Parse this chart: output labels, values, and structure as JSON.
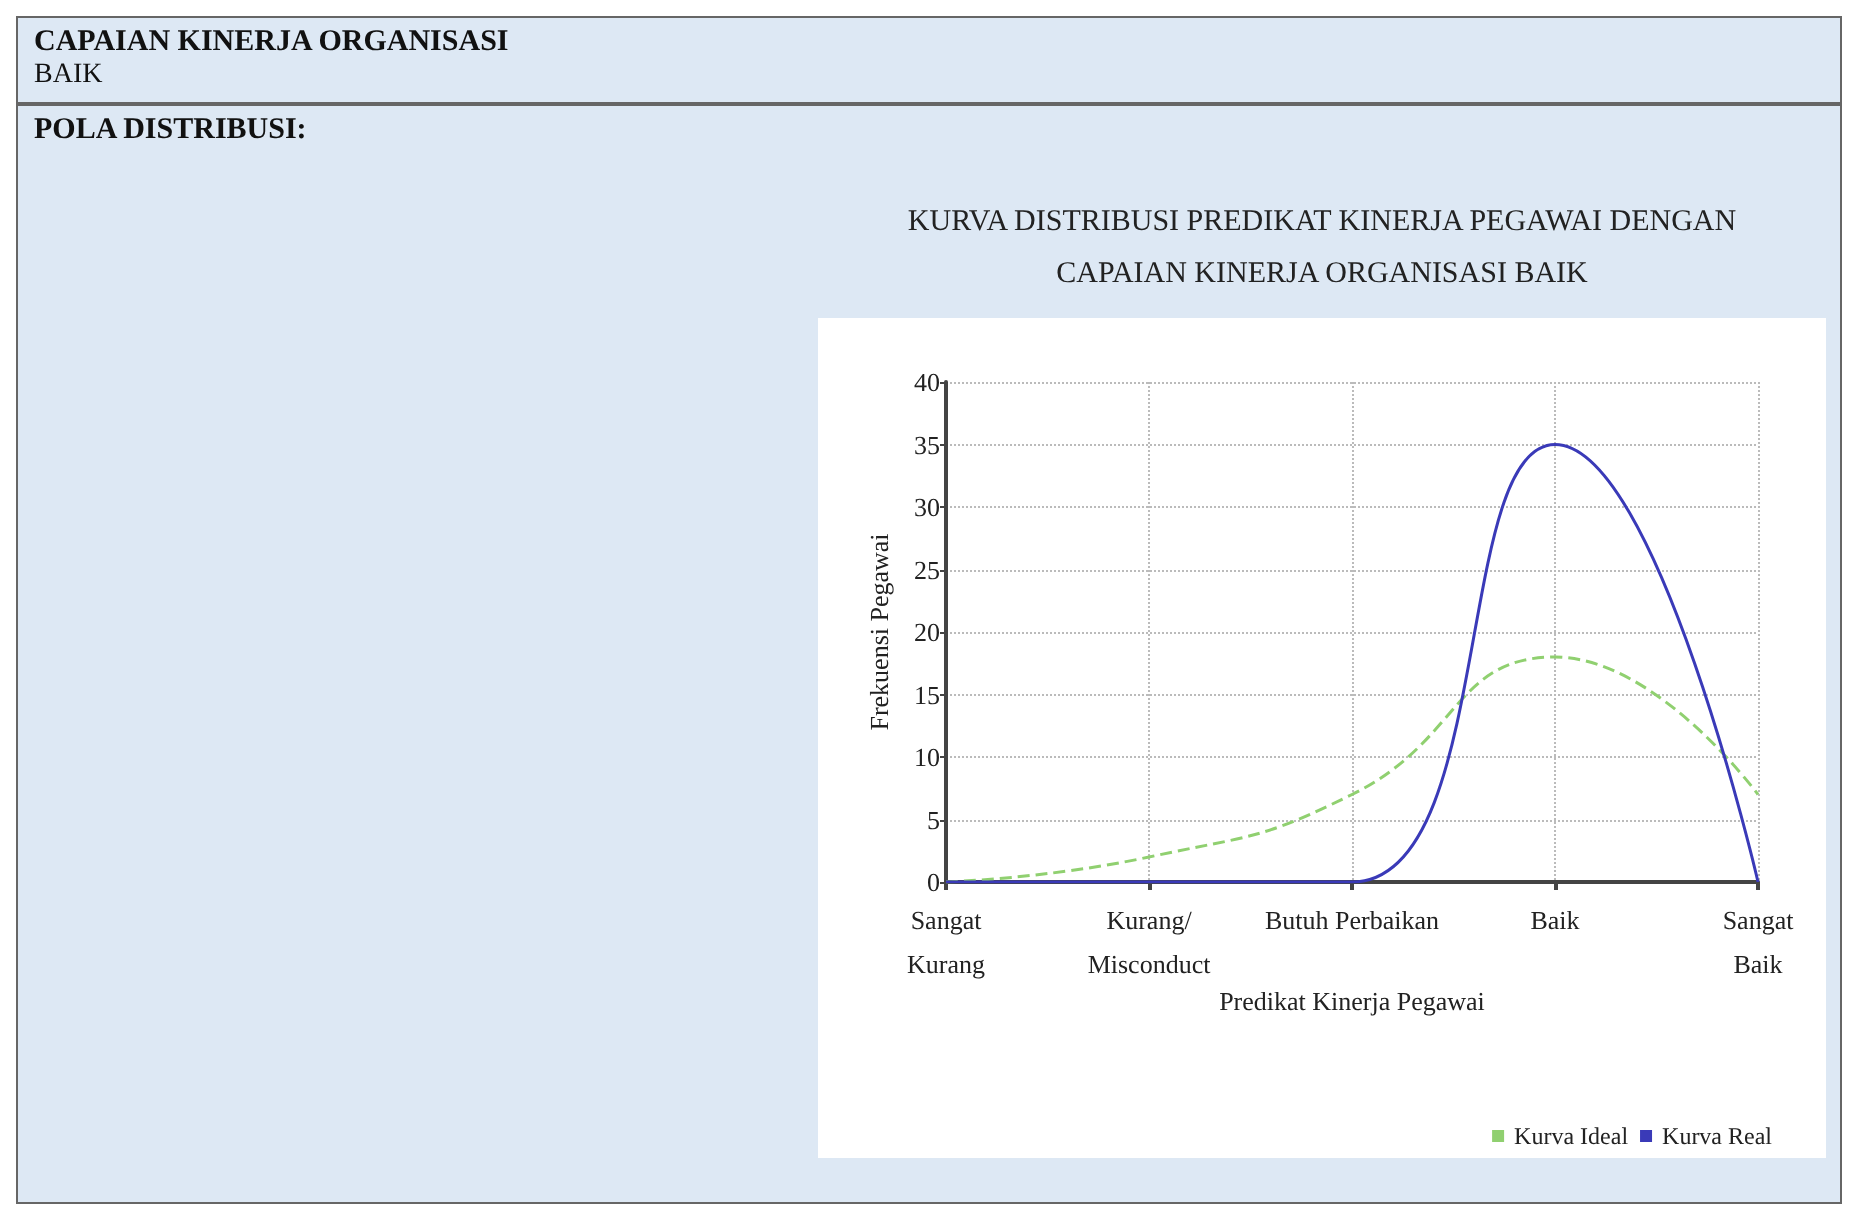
{
  "chart_data": {
    "type": "line",
    "title": "KURVA DISTRIBUSI PREDIKAT KINERJA PEGAWAI DENGAN\nCAPAIAN KINERJA ORGANISASI BAIK",
    "annotations": [
      "CAPAIAN KINERJA ORGANISASI",
      "BAIK",
      "POLA DISTRIBUSI:"
    ],
    "xlabel": "Predikat Kinerja Pegawai",
    "ylabel": "Frekuensi Pegawai",
    "categories": [
      "Sangat\nKurang",
      "Kurang/\nMisconduct",
      "Butuh Perbaikan",
      "Baik",
      "Sangat\nBaik"
    ],
    "series": [
      {
        "name": "Kurva Ideal",
        "color": "#90d070",
        "line_style": "dashed",
        "values": [
          0,
          2,
          7,
          18,
          7
        ]
      },
      {
        "name": "Kurva Real",
        "color": "#3a3ab8",
        "line_style": "solid",
        "values": [
          0,
          0,
          0,
          35,
          0
        ]
      }
    ],
    "ylim": [
      0,
      40
    ],
    "yticks": [
      0,
      5,
      10,
      15,
      20,
      25,
      30,
      35,
      40
    ],
    "grid": true,
    "legend": "bottom right",
    "marker": "none"
  }
}
